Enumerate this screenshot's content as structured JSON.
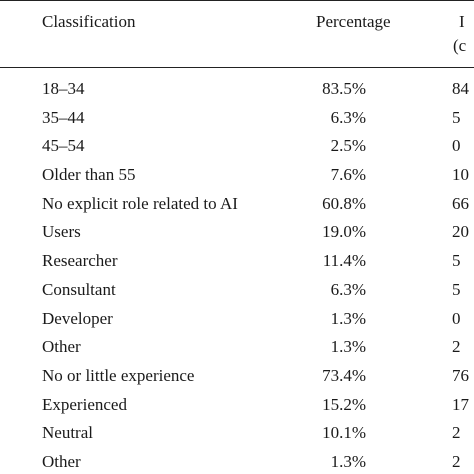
{
  "table": {
    "headers": {
      "classification": "Classification",
      "percentage": "Percentage",
      "third_line1": "I",
      "third_line2": "(c"
    },
    "rows": [
      {
        "label": "18–34",
        "percentage": "83.5%",
        "third": "84"
      },
      {
        "label": "35–44",
        "percentage": "6.3%",
        "third": "5"
      },
      {
        "label": "45–54",
        "percentage": "2.5%",
        "third": "0"
      },
      {
        "label": "Older than 55",
        "percentage": "7.6%",
        "third": "10"
      },
      {
        "label": "No explicit role related to AI",
        "percentage": "60.8%",
        "third": "66"
      },
      {
        "label": "Users",
        "percentage": "19.0%",
        "third": "20"
      },
      {
        "label": "Researcher",
        "percentage": "11.4%",
        "third": "5"
      },
      {
        "label": "Consultant",
        "percentage": "6.3%",
        "third": "5"
      },
      {
        "label": "Developer",
        "percentage": "1.3%",
        "third": "0"
      },
      {
        "label": "Other",
        "percentage": "1.3%",
        "third": "2"
      },
      {
        "label": "No or little experience",
        "percentage": "73.4%",
        "third": "76"
      },
      {
        "label": "Experienced",
        "percentage": "15.2%",
        "third": "17"
      },
      {
        "label": "Neutral",
        "percentage": "10.1%",
        "third": "2"
      },
      {
        "label": "Other",
        "percentage": "1.3%",
        "third": "2"
      }
    ]
  }
}
